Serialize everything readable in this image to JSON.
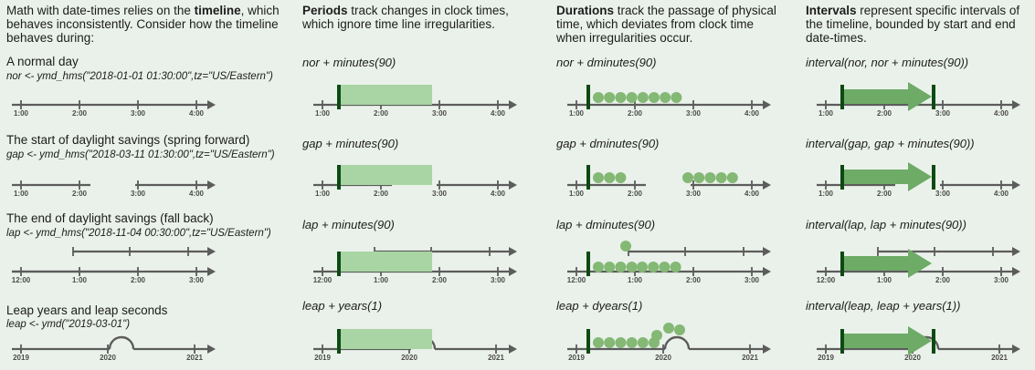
{
  "intro": {
    "text_pre": "Math with date-times relies on the ",
    "text_bold": "timeline",
    "text_post": ", which behaves inconsistently. Consider how the timeline behaves during:"
  },
  "periods_header": {
    "bold": "Periods",
    "text": " track changes in clock times, which ignore time line irregularities."
  },
  "durations_header": {
    "bold": "Durations",
    "text": " track the passage of physical time, which deviates from clock time when irregularities occur."
  },
  "intervals_header": {
    "bold": "Intervals",
    "text": " represent specific intervals of the timeline, bounded by start and end date-times."
  },
  "rows": [
    {
      "label": "A normal day",
      "code": "nor <- ymd_hms(\"2018-01-01 01:30:00\",tz=\"US/Eastern\")",
      "ticks": [
        "1:00",
        "2:00",
        "3:00",
        "4:00"
      ],
      "period_expr": "nor + minutes(90)",
      "duration_expr": "nor + dminutes(90)",
      "interval_expr": "interval(nor, nor + minutes(90))"
    },
    {
      "label": "The start of daylight savings (spring forward)",
      "code": "gap <- ymd_hms(\"2018-03-11 01:30:00\",tz=\"US/Eastern\")",
      "ticks": [
        "1:00",
        "2:00",
        "3:00",
        "4:00"
      ],
      "period_expr": "gap + minutes(90)",
      "duration_expr": "gap + dminutes(90)",
      "interval_expr": "interval(gap, gap + minutes(90))"
    },
    {
      "label": "The end of daylight savings (fall back)",
      "code": "lap <- ymd_hms(\"2018-11-04 00:30:00\",tz=\"US/Eastern\")",
      "ticks": [
        "12:00",
        "1:00",
        "2:00",
        "3:00"
      ],
      "period_expr": "lap + minutes(90)",
      "duration_expr": "lap + dminutes(90)",
      "interval_expr": "interval(lap, lap + minutes(90))"
    },
    {
      "label": "Leap years and leap seconds",
      "code": "leap <- ymd(\"2019-03-01\")",
      "ticks": [
        "2019",
        "2020",
        "2021"
      ],
      "period_expr": "leap + years(1)",
      "duration_expr": "leap + dyears(1)",
      "interval_expr": "interval(leap, leap + years(1))"
    }
  ],
  "colors": {
    "line": "#5c5c5c",
    "dark_green": "#0d4a13",
    "fill_green": "#a9d5a4",
    "dot_green": "#84b875",
    "arrow_green": "#6dab67"
  }
}
